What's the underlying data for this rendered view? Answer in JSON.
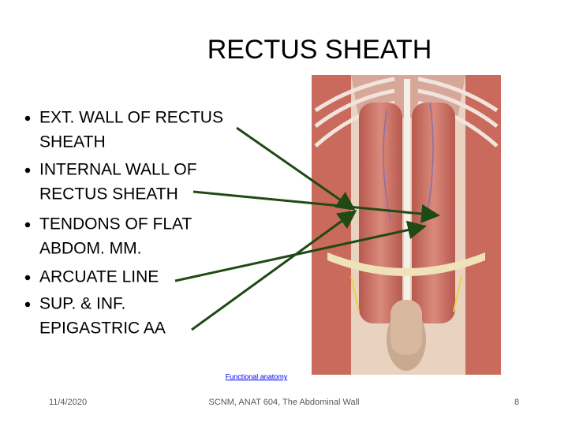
{
  "header": {
    "title": "RECTUS SHEATH"
  },
  "bullets": [
    [
      "EXT. WALL OF RECTUS",
      "SHEATH"
    ],
    [
      "INTERNAL WALL OF",
      "RECTUS SHEATH"
    ],
    [
      "TENDONS OF FLAT",
      "ABDOM. MM."
    ],
    [
      "ARCUATE LINE"
    ],
    [
      "SUP. & INF.",
      "EPIGASTRIC AA"
    ]
  ],
  "link": "Functional anatomy",
  "footer": {
    "date": "11/4/2020",
    "center": "SCNM, ANAT 604, The Abdominal Wall",
    "page": "8"
  }
}
